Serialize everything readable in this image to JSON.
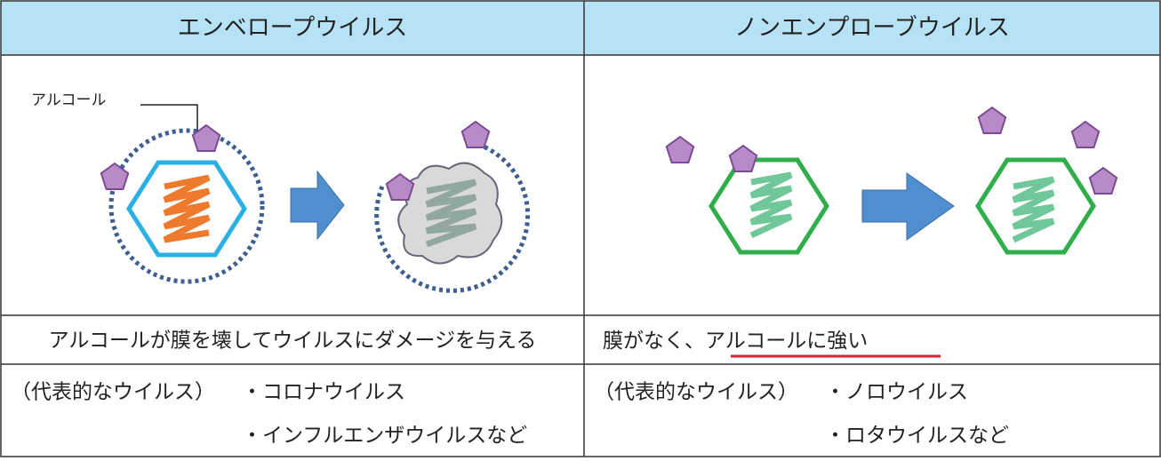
{
  "columns": [
    {
      "header": "エンベロープウイルス",
      "diagram_label": "アルコール",
      "description": {
        "text": "アルコールが膜を壊してウイルスにダメージを与える"
      },
      "examples": {
        "label": "（代表的なウイルス）",
        "items": [
          "・コロナウイルス",
          "・インフルエンザウイルスなど"
        ]
      }
    },
    {
      "header": "ノンエンプローブウイルス",
      "description": {
        "text": "膜がなく、",
        "underlined": "アルコールに強い"
      },
      "examples": {
        "label": "（代表的なウイルス）",
        "items": [
          "・ノロウイルス",
          "・ロタウイルスなど"
        ]
      }
    }
  ]
}
